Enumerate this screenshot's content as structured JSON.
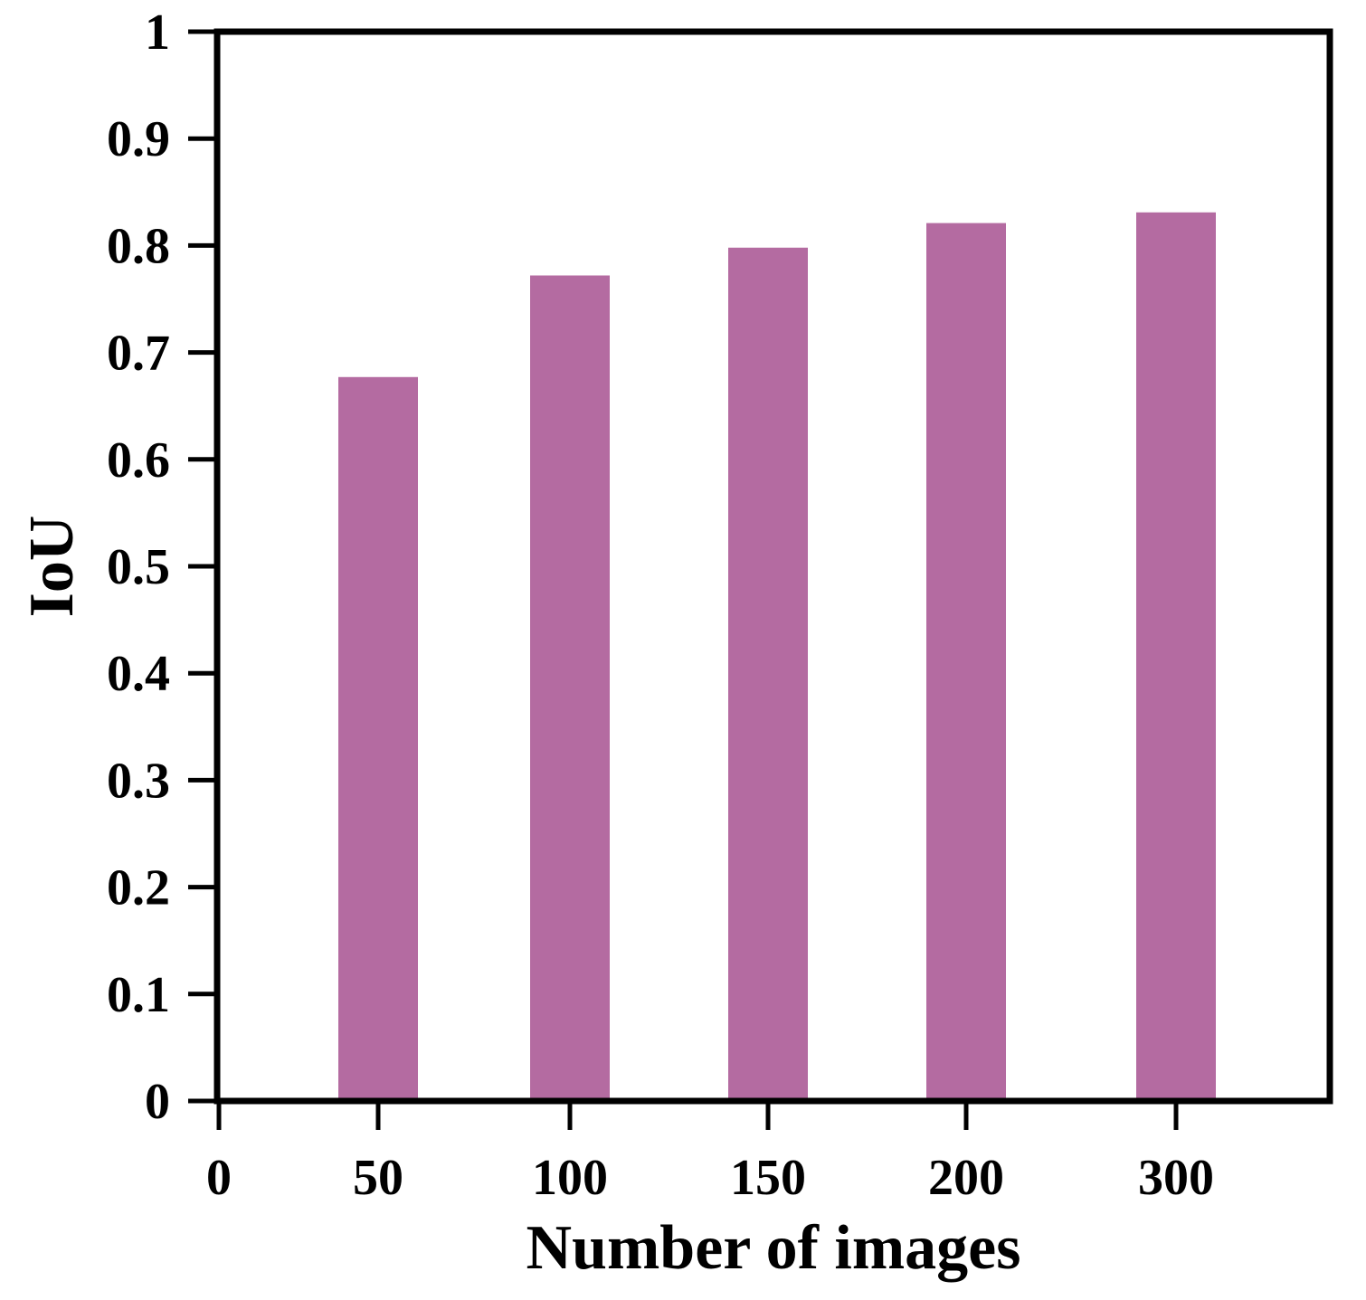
{
  "chart_data": {
    "type": "bar",
    "x": [
      50,
      100,
      150,
      200,
      300
    ],
    "values": [
      0.677,
      0.772,
      0.798,
      0.821,
      0.831
    ],
    "xlabel": "Number of images",
    "ylabel": "IoU",
    "ylim": [
      0,
      1
    ],
    "yticks": [
      "0",
      "0.1",
      "0.2",
      "0.3",
      "0.4",
      "0.5",
      "0.6",
      "0.7",
      "0.8",
      "0.9",
      "1"
    ],
    "xticks": [
      "0",
      "50",
      "100",
      "150",
      "200",
      "300"
    ],
    "grid": false,
    "bar_color": "#b46ba1"
  }
}
